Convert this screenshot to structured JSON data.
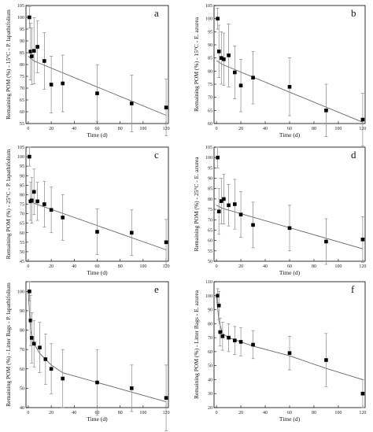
{
  "chart_data": [
    {
      "id": "a",
      "type": "scatter",
      "panel_label": "a",
      "xlabel": "Time (d)",
      "ylabel": "Remaining POM (%) - 15°C - P. lapathifolium",
      "xlim": [
        -2,
        122
      ],
      "ylim": [
        55,
        105
      ],
      "xticks": [
        0,
        20,
        40,
        60,
        80,
        100,
        120
      ],
      "yticks": [
        55,
        60,
        65,
        70,
        75,
        80,
        85,
        90,
        95,
        100,
        105
      ],
      "x": [
        1,
        2,
        3,
        5,
        8,
        14,
        20,
        30,
        60,
        90,
        120
      ],
      "y": [
        100,
        85.5,
        83.5,
        85.8,
        87.5,
        81.5,
        71.5,
        72,
        67.8,
        63.5,
        61.8
      ],
      "err": [
        4.5,
        12,
        12,
        14,
        11,
        12,
        12,
        12,
        12,
        12,
        12
      ],
      "fit": {
        "x": [
          0,
          5,
          120
        ],
        "y": [
          83.5,
          81.5,
          58.5
        ]
      }
    },
    {
      "id": "b",
      "type": "scatter",
      "panel_label": "b",
      "xlabel": "Time (d)",
      "ylabel": "Remaining POM (%) - 15°C - E. azurea",
      "xlim": [
        -2,
        122
      ],
      "ylim": [
        60,
        105
      ],
      "xticks": [
        0,
        20,
        40,
        60,
        80,
        100,
        120
      ],
      "yticks": [
        60,
        65,
        70,
        75,
        80,
        85,
        90,
        95,
        100,
        105
      ],
      "x": [
        1,
        2,
        4,
        6,
        10,
        15,
        20,
        30,
        60,
        90,
        120
      ],
      "y": [
        100,
        87.5,
        85,
        84.5,
        86,
        79.5,
        74.5,
        77.5,
        74,
        65,
        61.5
      ],
      "err": [
        4,
        10,
        10,
        10,
        12,
        10,
        10,
        10,
        11,
        10,
        10
      ],
      "fit": {
        "x": [
          0,
          5,
          120
        ],
        "y": [
          84,
          82.5,
          60.5
        ]
      }
    },
    {
      "id": "c",
      "type": "scatter",
      "panel_label": "c",
      "xlabel": "Time (d)",
      "ylabel": "Remaining POM (%) - 25°C - P. lapathifolium",
      "xlim": [
        -2,
        122
      ],
      "ylim": [
        45,
        105
      ],
      "xticks": [
        0,
        20,
        40,
        60,
        80,
        100,
        120
      ],
      "yticks": [
        45,
        50,
        55,
        60,
        65,
        70,
        75,
        80,
        85,
        90,
        95,
        100,
        105
      ],
      "x": [
        1,
        2,
        3,
        5,
        8,
        14,
        20,
        30,
        60,
        90,
        120
      ],
      "y": [
        100,
        76.5,
        77,
        81.5,
        76.5,
        75,
        72,
        68,
        60.5,
        60,
        55
      ],
      "err": [
        5,
        10,
        12,
        12,
        10,
        12,
        12,
        12,
        12,
        12,
        12
      ],
      "fit": {
        "x": [
          0,
          5,
          120
        ],
        "y": [
          77,
          75.5,
          51
        ]
      }
    },
    {
      "id": "d",
      "type": "scatter",
      "panel_label": "d",
      "xlabel": "Time (d)",
      "ylabel": "Remaining POM (%) - 25°C - E. azurea",
      "xlim": [
        -2,
        122
      ],
      "ylim": [
        50,
        105
      ],
      "xticks": [
        0,
        20,
        40,
        60,
        80,
        100,
        120
      ],
      "yticks": [
        50,
        55,
        60,
        65,
        70,
        75,
        80,
        85,
        90,
        95,
        100,
        105
      ],
      "x": [
        1,
        2,
        4,
        6,
        10,
        15,
        20,
        30,
        60,
        90,
        120
      ],
      "y": [
        100,
        74,
        79,
        80,
        77,
        77.5,
        72.5,
        67.5,
        66,
        59.5,
        60.5
      ],
      "err": [
        5,
        11,
        11,
        12,
        10,
        12,
        11,
        11,
        11,
        11,
        11
      ],
      "fit": {
        "x": [
          0,
          5,
          120
        ],
        "y": [
          77,
          75.5,
          56
        ]
      }
    },
    {
      "id": "e",
      "type": "scatter",
      "panel_label": "e",
      "xlabel": "Time (d)",
      "ylabel": "Remaining POM (%) - Litter Bags - P. lapathifolium",
      "xlim": [
        -2,
        122
      ],
      "ylim": [
        40,
        105
      ],
      "xticks": [
        0,
        20,
        40,
        60,
        80,
        100,
        120
      ],
      "yticks": [
        40,
        50,
        60,
        70,
        80,
        90,
        100
      ],
      "x": [
        1,
        2,
        3,
        5,
        10,
        15,
        20,
        30,
        60,
        90,
        120
      ],
      "y": [
        100,
        85,
        76,
        73,
        71,
        65,
        60,
        55,
        53,
        50,
        45
      ],
      "err": [
        5,
        13,
        13,
        12,
        13,
        13,
        13,
        15,
        17,
        12,
        17
      ],
      "fit": {
        "x": [
          0,
          2,
          5,
          10,
          20,
          30,
          60,
          90,
          120
        ],
        "y": [
          100,
          80,
          73,
          68,
          62,
          58,
          53,
          48,
          43
        ]
      }
    },
    {
      "id": "f",
      "type": "scatter",
      "panel_label": "f",
      "xlabel": "Time (d)",
      "ylabel": "Remaining POM (%) - Litter Bags - E. azurea",
      "xlim": [
        -2,
        122
      ],
      "ylim": [
        20,
        110
      ],
      "xticks": [
        0,
        20,
        40,
        60,
        80,
        100,
        120
      ],
      "yticks": [
        20,
        30,
        40,
        50,
        60,
        70,
        80,
        90,
        100,
        110
      ],
      "x": [
        1,
        2,
        3,
        5,
        10,
        15,
        20,
        30,
        60,
        90,
        120
      ],
      "y": [
        100,
        93,
        74,
        71,
        70,
        68,
        67,
        65,
        59,
        54,
        30
      ],
      "err": [
        5,
        10,
        10,
        10,
        10,
        10,
        10,
        10,
        12,
        19,
        10
      ],
      "fit": {
        "x": [
          0,
          2,
          5,
          10,
          20,
          30,
          60,
          90,
          120
        ],
        "y": [
          100,
          82,
          73,
          70,
          67,
          64,
          57,
          48,
          40
        ]
      }
    }
  ]
}
